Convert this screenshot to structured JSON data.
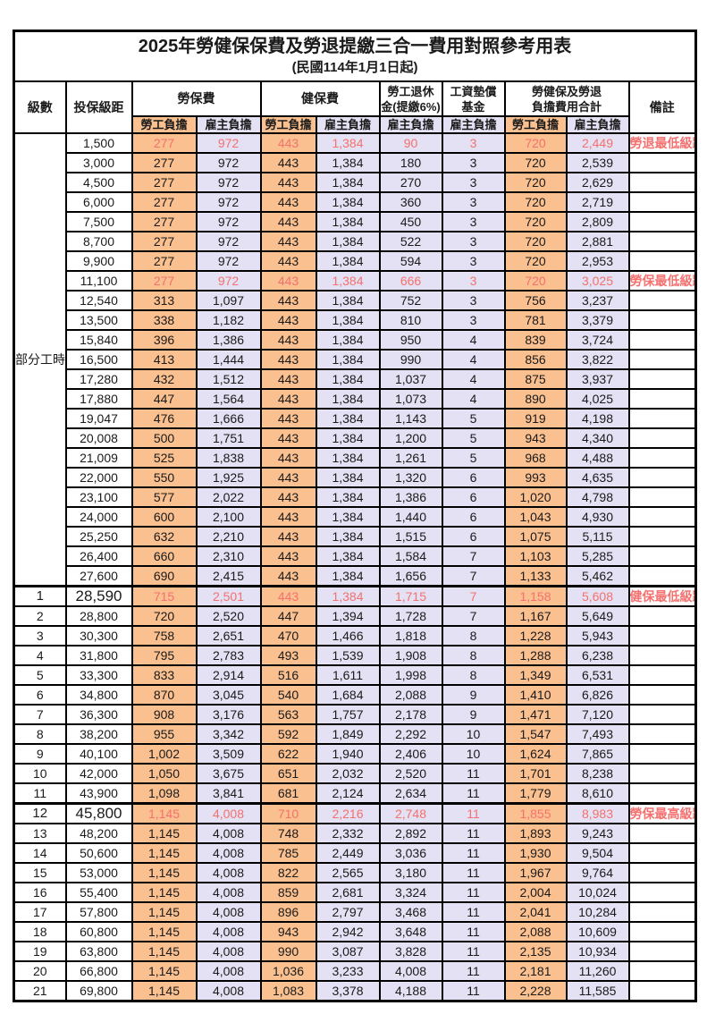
{
  "title": "2025年勞健保保費及勞退提繳三合一費用對照參考用表",
  "subtitle": "(民國114年1月1日起)",
  "columns": {
    "level": "級數",
    "bracket": "投保級距",
    "labor": "勞保費",
    "health": "健保費",
    "pension_l1": "勞工退休",
    "pension_l2": "金(提繳6%)",
    "wage_l1": "工資墊償",
    "wage_l2": "基金",
    "total_l1": "勞健保及勞退",
    "total_l2": "負擔費用合計",
    "note": "備註",
    "employee_label": "勞工負擔",
    "employer_label": "雇主負擔"
  },
  "colors": {
    "employee_bg": "#FAC090",
    "employer_bg": "#E3E1F3",
    "highlight_text": "#F4716F",
    "border": "#000000"
  },
  "table": {
    "part_time_label": "部分工時",
    "rows": [
      {
        "level": "部分工時",
        "level_span": 23,
        "bracket": "1,500",
        "values": [
          "277",
          "972",
          "443",
          "1,384",
          "90",
          "3",
          "720",
          "2,449"
        ],
        "note": "勞退最低級距",
        "red": true
      },
      {
        "bracket": "3,000",
        "values": [
          "277",
          "972",
          "443",
          "1,384",
          "180",
          "3",
          "720",
          "2,539"
        ],
        "note": ""
      },
      {
        "bracket": "4,500",
        "values": [
          "277",
          "972",
          "443",
          "1,384",
          "270",
          "3",
          "720",
          "2,629"
        ],
        "note": ""
      },
      {
        "bracket": "6,000",
        "values": [
          "277",
          "972",
          "443",
          "1,384",
          "360",
          "3",
          "720",
          "2,719"
        ],
        "note": ""
      },
      {
        "bracket": "7,500",
        "values": [
          "277",
          "972",
          "443",
          "1,384",
          "450",
          "3",
          "720",
          "2,809"
        ],
        "note": ""
      },
      {
        "bracket": "8,700",
        "values": [
          "277",
          "972",
          "443",
          "1,384",
          "522",
          "3",
          "720",
          "2,881"
        ],
        "note": ""
      },
      {
        "bracket": "9,900",
        "values": [
          "277",
          "972",
          "443",
          "1,384",
          "594",
          "3",
          "720",
          "2,953"
        ],
        "note": ""
      },
      {
        "bracket": "11,100",
        "values": [
          "277",
          "972",
          "443",
          "1,384",
          "666",
          "3",
          "720",
          "3,025"
        ],
        "note": "勞保最低級距",
        "red": true
      },
      {
        "bracket": "12,540",
        "values": [
          "313",
          "1,097",
          "443",
          "1,384",
          "752",
          "3",
          "756",
          "3,237"
        ],
        "note": ""
      },
      {
        "bracket": "13,500",
        "values": [
          "338",
          "1,182",
          "443",
          "1,384",
          "810",
          "3",
          "781",
          "3,379"
        ],
        "note": ""
      },
      {
        "bracket": "15,840",
        "values": [
          "396",
          "1,386",
          "443",
          "1,384",
          "950",
          "4",
          "839",
          "3,724"
        ],
        "note": ""
      },
      {
        "bracket": "16,500",
        "values": [
          "413",
          "1,444",
          "443",
          "1,384",
          "990",
          "4",
          "856",
          "3,822"
        ],
        "note": ""
      },
      {
        "bracket": "17,280",
        "values": [
          "432",
          "1,512",
          "443",
          "1,384",
          "1,037",
          "4",
          "875",
          "3,937"
        ],
        "note": ""
      },
      {
        "bracket": "17,880",
        "values": [
          "447",
          "1,564",
          "443",
          "1,384",
          "1,073",
          "4",
          "890",
          "4,025"
        ],
        "note": ""
      },
      {
        "bracket": "19,047",
        "values": [
          "476",
          "1,666",
          "443",
          "1,384",
          "1,143",
          "5",
          "919",
          "4,198"
        ],
        "note": ""
      },
      {
        "bracket": "20,008",
        "values": [
          "500",
          "1,751",
          "443",
          "1,384",
          "1,200",
          "5",
          "943",
          "4,340"
        ],
        "note": ""
      },
      {
        "bracket": "21,009",
        "values": [
          "525",
          "1,838",
          "443",
          "1,384",
          "1,261",
          "5",
          "968",
          "4,488"
        ],
        "note": ""
      },
      {
        "bracket": "22,000",
        "values": [
          "550",
          "1,925",
          "443",
          "1,384",
          "1,320",
          "6",
          "993",
          "4,635"
        ],
        "note": ""
      },
      {
        "bracket": "23,100",
        "values": [
          "577",
          "2,022",
          "443",
          "1,384",
          "1,386",
          "6",
          "1,020",
          "4,798"
        ],
        "note": ""
      },
      {
        "bracket": "24,000",
        "values": [
          "600",
          "2,100",
          "443",
          "1,384",
          "1,440",
          "6",
          "1,043",
          "4,930"
        ],
        "note": ""
      },
      {
        "bracket": "25,250",
        "values": [
          "632",
          "2,210",
          "443",
          "1,384",
          "1,515",
          "6",
          "1,075",
          "5,115"
        ],
        "note": ""
      },
      {
        "bracket": "26,400",
        "values": [
          "660",
          "2,310",
          "443",
          "1,384",
          "1,584",
          "7",
          "1,103",
          "5,285"
        ],
        "note": ""
      },
      {
        "bracket": "27,600",
        "values": [
          "690",
          "2,415",
          "443",
          "1,384",
          "1,656",
          "7",
          "1,133",
          "5,462"
        ],
        "note": ""
      },
      {
        "level": "1",
        "bracket": "28,590",
        "values": [
          "715",
          "2,501",
          "443",
          "1,384",
          "1,715",
          "7",
          "1,158",
          "5,608"
        ],
        "note": "健保最低級距",
        "red": true,
        "key": true,
        "thick_top": true
      },
      {
        "level": "2",
        "bracket": "28,800",
        "values": [
          "720",
          "2,520",
          "447",
          "1,394",
          "1,728",
          "7",
          "1,167",
          "5,649"
        ],
        "note": ""
      },
      {
        "level": "3",
        "bracket": "30,300",
        "values": [
          "758",
          "2,651",
          "470",
          "1,466",
          "1,818",
          "8",
          "1,228",
          "5,943"
        ],
        "note": ""
      },
      {
        "level": "4",
        "bracket": "31,800",
        "values": [
          "795",
          "2,783",
          "493",
          "1,539",
          "1,908",
          "8",
          "1,288",
          "6,238"
        ],
        "note": ""
      },
      {
        "level": "5",
        "bracket": "33,300",
        "values": [
          "833",
          "2,914",
          "516",
          "1,611",
          "1,998",
          "8",
          "1,349",
          "6,531"
        ],
        "note": ""
      },
      {
        "level": "6",
        "bracket": "34,800",
        "values": [
          "870",
          "3,045",
          "540",
          "1,684",
          "2,088",
          "9",
          "1,410",
          "6,826"
        ],
        "note": ""
      },
      {
        "level": "7",
        "bracket": "36,300",
        "values": [
          "908",
          "3,176",
          "563",
          "1,757",
          "2,178",
          "9",
          "1,471",
          "7,120"
        ],
        "note": ""
      },
      {
        "level": "8",
        "bracket": "38,200",
        "values": [
          "955",
          "3,342",
          "592",
          "1,849",
          "2,292",
          "10",
          "1,547",
          "7,493"
        ],
        "note": ""
      },
      {
        "level": "9",
        "bracket": "40,100",
        "values": [
          "1,002",
          "3,509",
          "622",
          "1,940",
          "2,406",
          "10",
          "1,624",
          "7,865"
        ],
        "note": ""
      },
      {
        "level": "10",
        "bracket": "42,000",
        "values": [
          "1,050",
          "3,675",
          "651",
          "2,032",
          "2,520",
          "11",
          "1,701",
          "8,238"
        ],
        "note": ""
      },
      {
        "level": "11",
        "bracket": "43,900",
        "values": [
          "1,098",
          "3,841",
          "681",
          "2,124",
          "2,634",
          "11",
          "1,779",
          "8,610"
        ],
        "note": ""
      },
      {
        "level": "12",
        "bracket": "45,800",
        "values": [
          "1,145",
          "4,008",
          "710",
          "2,216",
          "2,748",
          "11",
          "1,855",
          "8,983"
        ],
        "note": "勞保最高級距",
        "red": true,
        "key": true,
        "thick_top": true
      },
      {
        "level": "13",
        "bracket": "48,200",
        "values": [
          "1,145",
          "4,008",
          "748",
          "2,332",
          "2,892",
          "11",
          "1,893",
          "9,243"
        ],
        "note": ""
      },
      {
        "level": "14",
        "bracket": "50,600",
        "values": [
          "1,145",
          "4,008",
          "785",
          "2,449",
          "3,036",
          "11",
          "1,930",
          "9,504"
        ],
        "note": ""
      },
      {
        "level": "15",
        "bracket": "53,000",
        "values": [
          "1,145",
          "4,008",
          "822",
          "2,565",
          "3,180",
          "11",
          "1,967",
          "9,764"
        ],
        "note": ""
      },
      {
        "level": "16",
        "bracket": "55,400",
        "values": [
          "1,145",
          "4,008",
          "859",
          "2,681",
          "3,324",
          "11",
          "2,004",
          "10,024"
        ],
        "note": ""
      },
      {
        "level": "17",
        "bracket": "57,800",
        "values": [
          "1,145",
          "4,008",
          "896",
          "2,797",
          "3,468",
          "11",
          "2,041",
          "10,284"
        ],
        "note": ""
      },
      {
        "level": "18",
        "bracket": "60,800",
        "values": [
          "1,145",
          "4,008",
          "943",
          "2,942",
          "3,648",
          "11",
          "2,088",
          "10,609"
        ],
        "note": ""
      },
      {
        "level": "19",
        "bracket": "63,800",
        "values": [
          "1,145",
          "4,008",
          "990",
          "3,087",
          "3,828",
          "11",
          "2,135",
          "10,934"
        ],
        "note": ""
      },
      {
        "level": "20",
        "bracket": "66,800",
        "values": [
          "1,145",
          "4,008",
          "1,036",
          "3,233",
          "4,008",
          "11",
          "2,181",
          "11,260"
        ],
        "note": ""
      },
      {
        "level": "21",
        "bracket": "69,800",
        "values": [
          "1,145",
          "4,008",
          "1,083",
          "3,378",
          "4,188",
          "11",
          "2,228",
          "11,585"
        ],
        "note": ""
      }
    ]
  }
}
